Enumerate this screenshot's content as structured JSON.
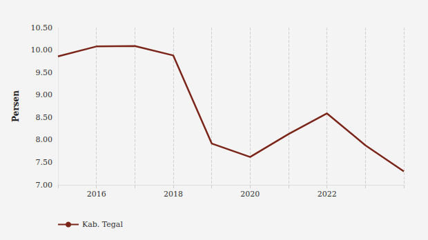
{
  "chart_data": {
    "type": "line",
    "y_label": "Persen",
    "categories": [
      null,
      "2016",
      null,
      "2018",
      null,
      "2020",
      null,
      "2022",
      null,
      null
    ],
    "series": [
      {
        "name": "Kab. Tegal",
        "color": "#7b2418",
        "values": [
          9.86,
          10.08,
          10.09,
          9.88,
          7.92,
          7.62,
          8.13,
          8.59,
          7.88,
          7.3
        ]
      }
    ],
    "ylim": [
      7,
      10.5
    ],
    "yticks": [
      {
        "value": 7,
        "label": "7.00"
      },
      {
        "value": 7.5,
        "label": "7.50"
      },
      {
        "value": 8,
        "label": "8.00"
      },
      {
        "value": 8.5,
        "label": "8.50"
      },
      {
        "value": 9,
        "label": "9.00"
      },
      {
        "value": 9.5,
        "label": "9.50"
      },
      {
        "value": 10,
        "label": "10.00"
      },
      {
        "value": 10.5,
        "label": "10.50"
      }
    ],
    "grid": true,
    "legend": "bottom-left"
  }
}
